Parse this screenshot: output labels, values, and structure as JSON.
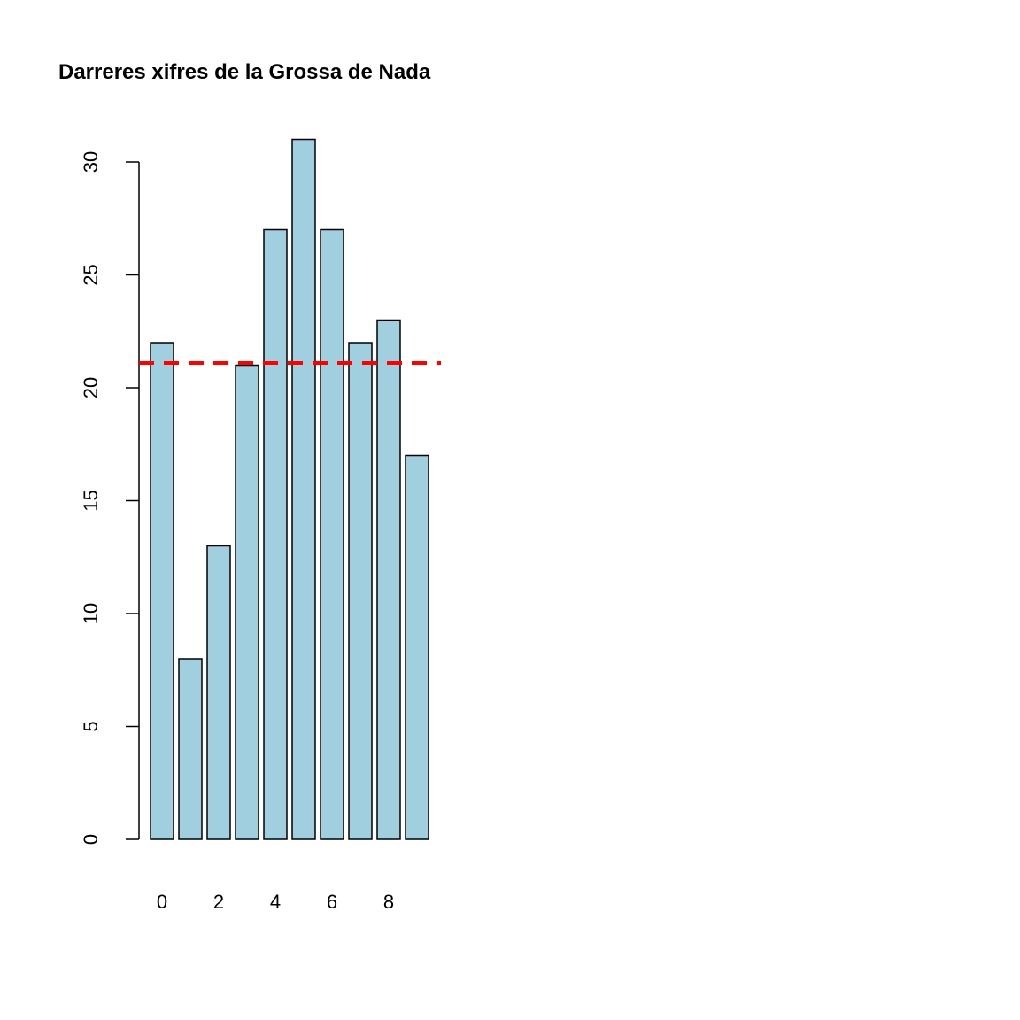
{
  "chart_data": {
    "type": "bar",
    "title": "Darreres xifres de  la Grossa de Nada",
    "xlabel": "",
    "ylabel": "",
    "categories": [
      "0",
      "1",
      "2",
      "3",
      "4",
      "5",
      "6",
      "7",
      "8",
      "9"
    ],
    "values": [
      22,
      8,
      13,
      21,
      27,
      31,
      27,
      22,
      23,
      17
    ],
    "x_tick_labels": [
      {
        "category_index": 0,
        "label": "0"
      },
      {
        "category_index": 2,
        "label": "2"
      },
      {
        "category_index": 4,
        "label": "4"
      },
      {
        "category_index": 6,
        "label": "6"
      },
      {
        "category_index": 8,
        "label": "8"
      }
    ],
    "y_ticks": [
      0,
      5,
      10,
      15,
      20,
      25,
      30
    ],
    "ylim": [
      0,
      31
    ],
    "reference_line": {
      "y": 21.1,
      "style": "dashed"
    },
    "grid": false,
    "legend": "none",
    "colors": {
      "bar_fill": "#a0cfe0",
      "bar_stroke": "#000000",
      "reference_line": "#ff0000",
      "axis": "#000000"
    }
  }
}
